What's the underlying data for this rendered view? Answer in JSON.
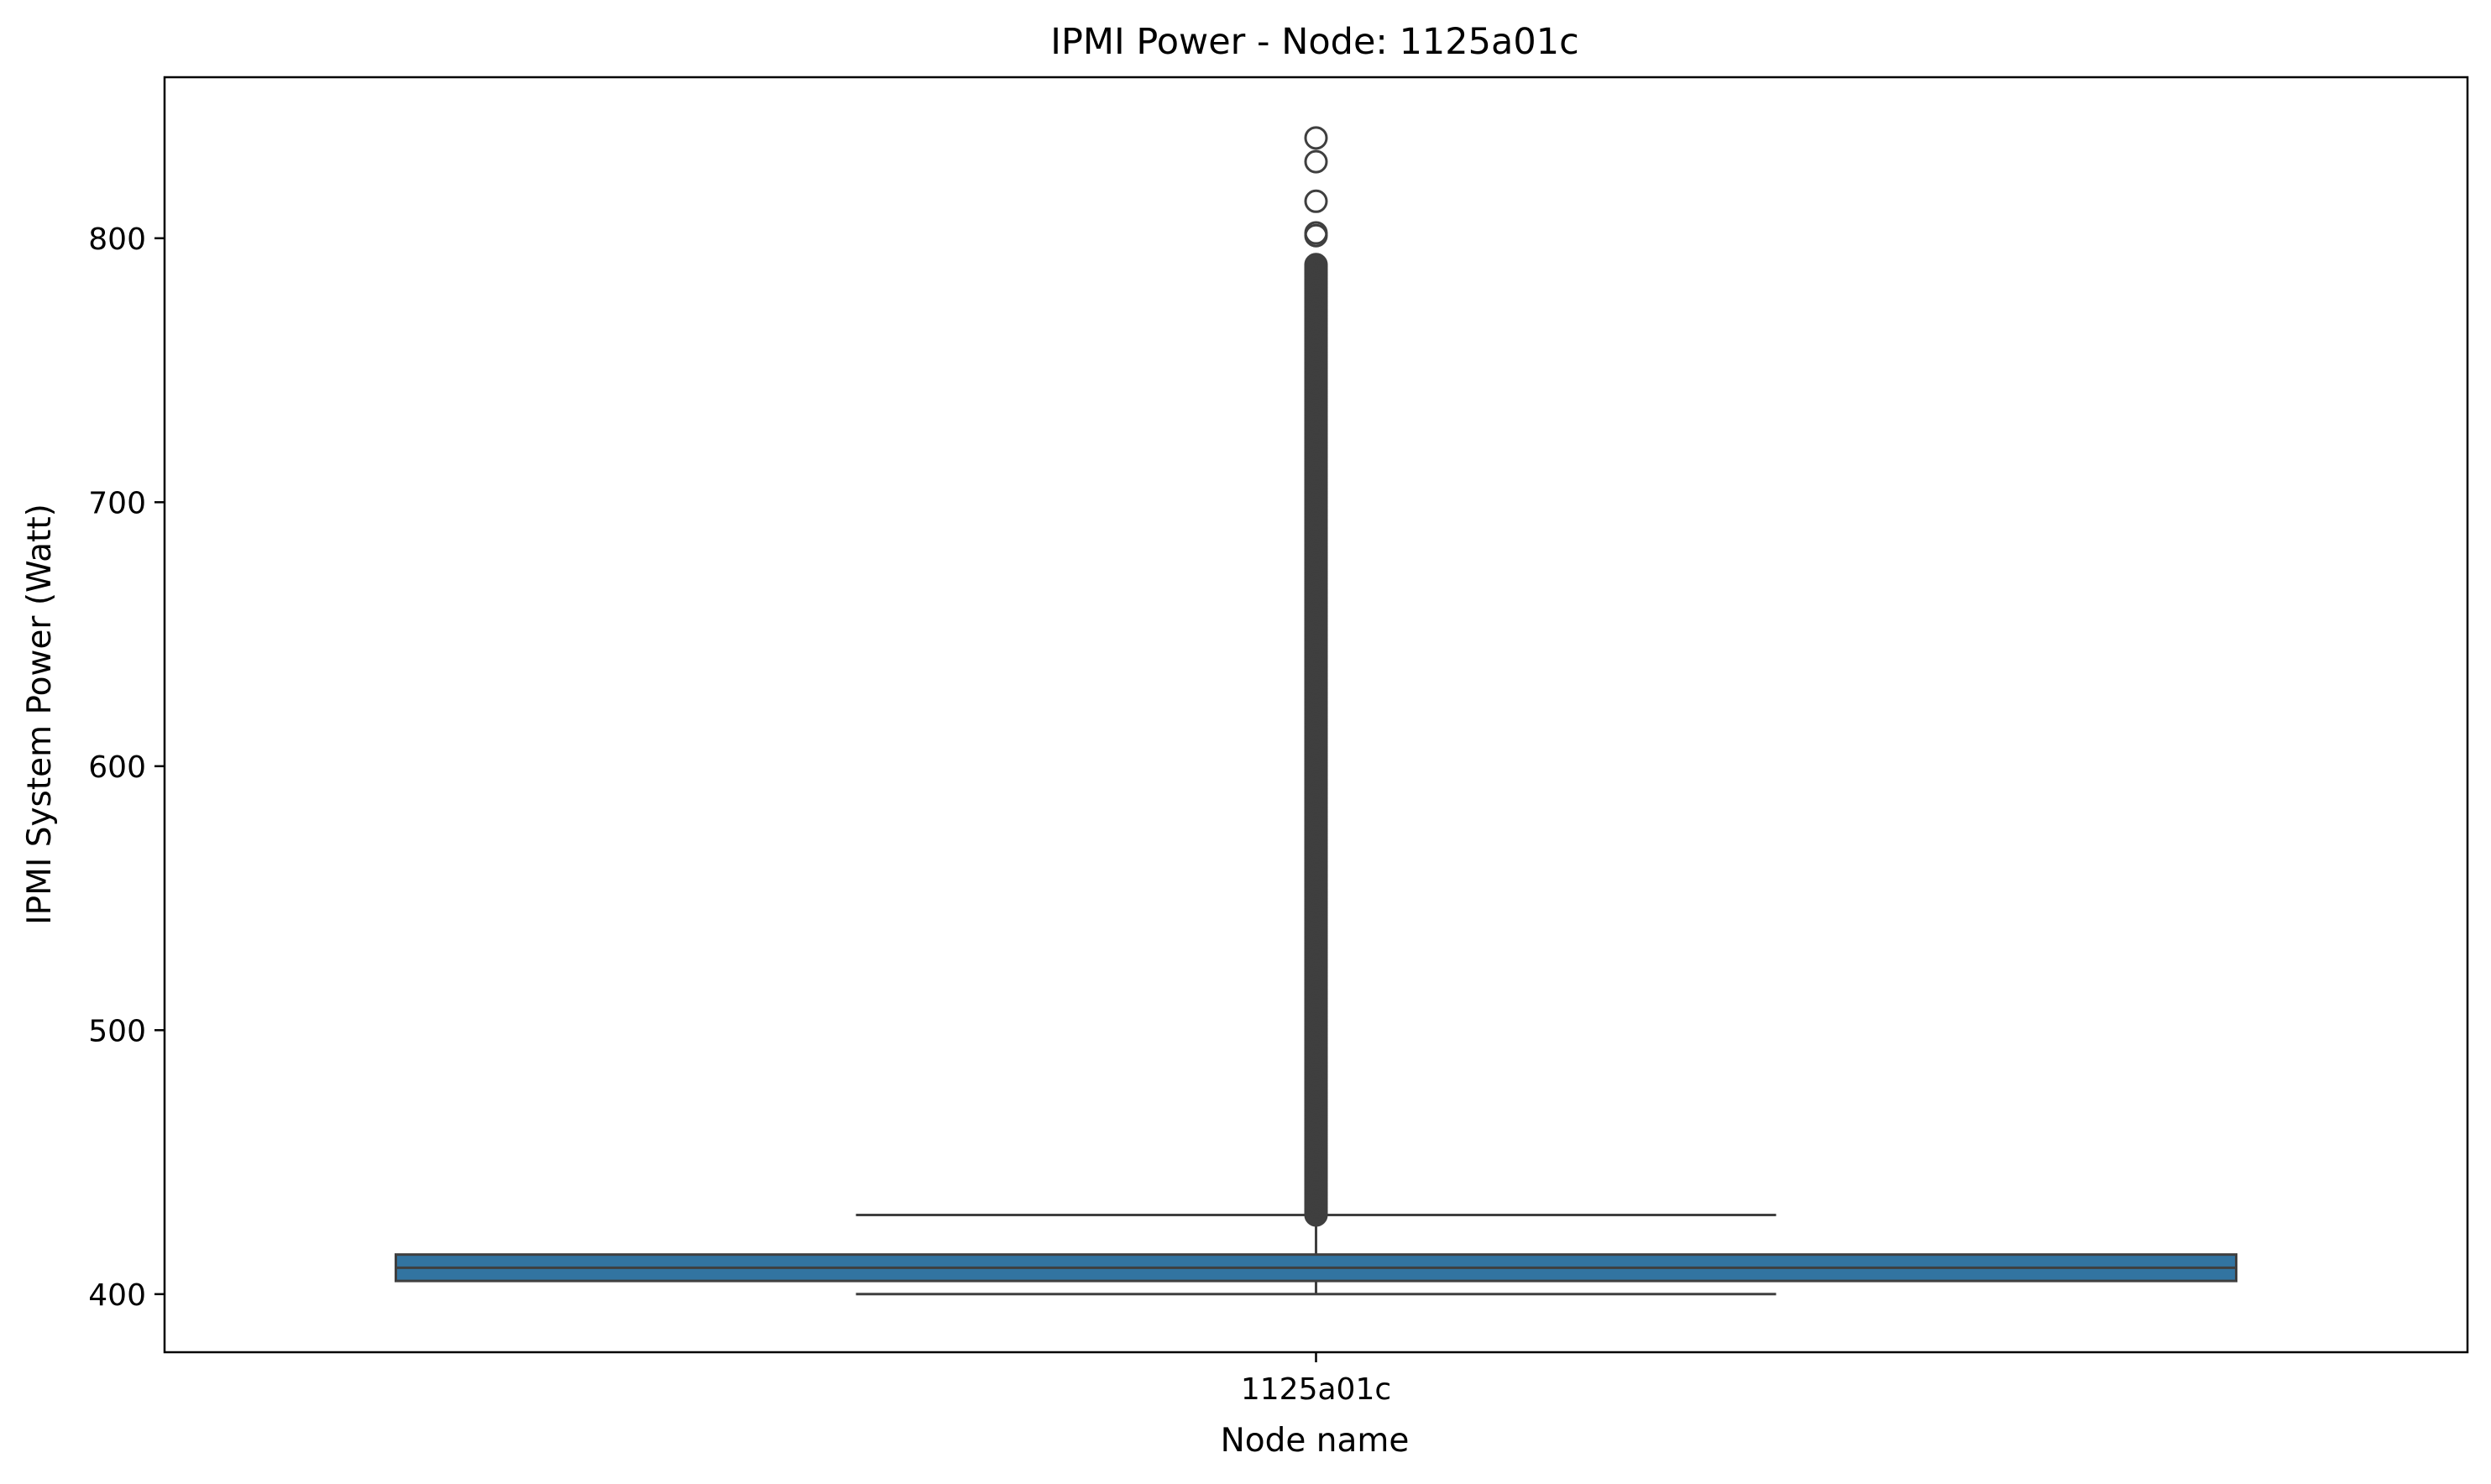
{
  "chart_data": {
    "type": "box",
    "title": "IPMI Power - Node: 1125a01c",
    "xlabel": "Node name",
    "ylabel": "IPMI System Power (Watt)",
    "categories": [
      "1125a01c"
    ],
    "ylim": [
      378,
      861
    ],
    "yticks": [
      400,
      500,
      600,
      700,
      800
    ],
    "box": {
      "category": "1125a01c",
      "whisker_low": 400,
      "q1": 405,
      "median": 410,
      "q3": 415,
      "whisker_high": 430,
      "outlier_range": [
        430,
        790
      ],
      "outliers_sparse": [
        801,
        802,
        814,
        829,
        838
      ],
      "color": "#3274a1"
    },
    "grid": false,
    "legend": "none"
  }
}
